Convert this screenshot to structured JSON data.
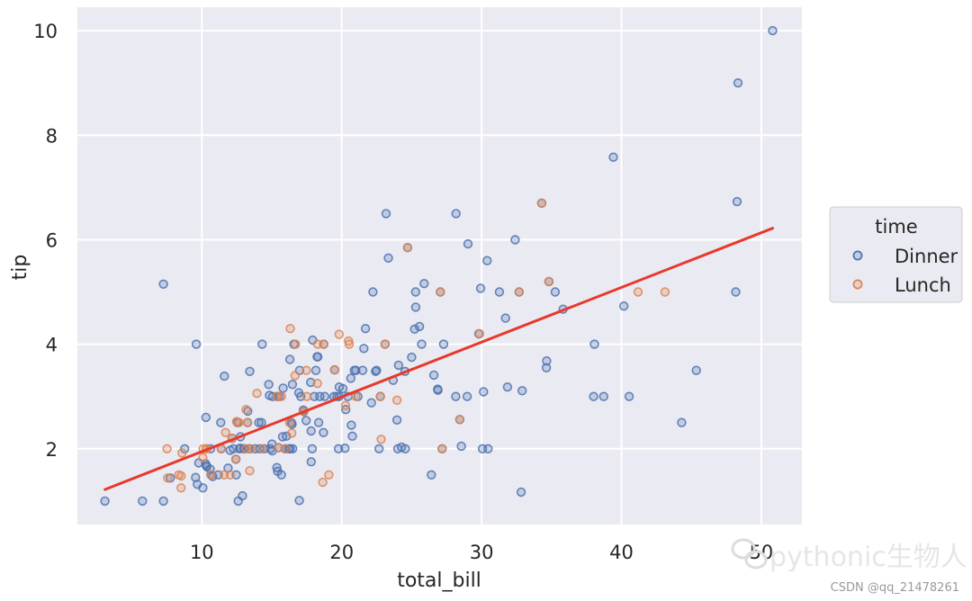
{
  "chart_data": {
    "type": "scatter",
    "xlabel": "total_bill",
    "ylabel": "tip",
    "xlim": [
      1.1,
      52.9
    ],
    "ylim": [
      0.55,
      10.45
    ],
    "xticks": [
      10,
      20,
      30,
      40,
      50
    ],
    "yticks": [
      2,
      4,
      6,
      8,
      10
    ],
    "grid": true,
    "legend": {
      "title": "time",
      "placement": "right"
    },
    "series": [
      {
        "name": "Dinner",
        "color": "#4c72b0",
        "points": [
          [
            3.07,
            1.0
          ],
          [
            5.75,
            1.0
          ],
          [
            7.25,
            1.0
          ],
          [
            7.25,
            5.15
          ],
          [
            7.74,
            1.44
          ],
          [
            8.77,
            2.0
          ],
          [
            9.55,
            1.45
          ],
          [
            9.6,
            4.0
          ],
          [
            9.68,
            1.32
          ],
          [
            9.78,
            1.73
          ],
          [
            10.07,
            1.25
          ],
          [
            10.27,
            1.71
          ],
          [
            10.29,
            2.6
          ],
          [
            10.33,
            1.67
          ],
          [
            10.34,
            1.66
          ],
          [
            10.59,
            1.61
          ],
          [
            10.63,
            2.0
          ],
          [
            10.65,
            1.5
          ],
          [
            10.77,
            1.47
          ],
          [
            11.17,
            1.5
          ],
          [
            11.35,
            2.5
          ],
          [
            11.38,
            2.0
          ],
          [
            11.61,
            3.39
          ],
          [
            11.87,
            1.63
          ],
          [
            12.02,
            1.97
          ],
          [
            12.16,
            2.2
          ],
          [
            12.26,
            2.0
          ],
          [
            12.43,
            1.8
          ],
          [
            12.46,
            1.5
          ],
          [
            12.54,
            2.5
          ],
          [
            12.6,
            1.0
          ],
          [
            12.69,
            2.0
          ],
          [
            12.74,
            2.01
          ],
          [
            12.76,
            2.23
          ],
          [
            12.9,
            1.1
          ],
          [
            13.0,
            2.0
          ],
          [
            13.03,
            2.0
          ],
          [
            13.27,
            2.5
          ],
          [
            13.28,
            2.72
          ],
          [
            13.37,
            2.0
          ],
          [
            13.42,
            3.48
          ],
          [
            13.81,
            2.0
          ],
          [
            14.07,
            2.5
          ],
          [
            14.15,
            2.0
          ],
          [
            14.26,
            2.5
          ],
          [
            14.31,
            4.0
          ],
          [
            14.48,
            2.0
          ],
          [
            14.78,
            3.23
          ],
          [
            14.83,
            3.02
          ],
          [
            14.9,
            2.0
          ],
          [
            15.01,
            2.09
          ],
          [
            15.04,
            1.96
          ],
          [
            15.06,
            3.0
          ],
          [
            15.36,
            1.64
          ],
          [
            15.38,
            3.0
          ],
          [
            15.42,
            1.57
          ],
          [
            15.48,
            2.02
          ],
          [
            15.53,
            3.0
          ],
          [
            15.69,
            1.5
          ],
          [
            15.77,
            2.23
          ],
          [
            15.81,
            3.16
          ],
          [
            15.95,
            2.0
          ],
          [
            16.0,
            2.0
          ],
          [
            16.04,
            2.24
          ],
          [
            16.21,
            2.0
          ],
          [
            16.29,
            3.71
          ],
          [
            16.31,
            2.0
          ],
          [
            16.4,
            2.5
          ],
          [
            16.45,
            2.47
          ],
          [
            16.47,
            3.23
          ],
          [
            16.49,
            2.0
          ],
          [
            16.58,
            4.0
          ],
          [
            16.93,
            3.07
          ],
          [
            16.97,
            1.01
          ],
          [
            16.99,
            3.5
          ],
          [
            17.07,
            3.0
          ],
          [
            17.26,
            2.74
          ],
          [
            17.29,
            2.71
          ],
          [
            17.46,
            2.54
          ],
          [
            17.78,
            3.27
          ],
          [
            17.81,
            2.34
          ],
          [
            17.82,
            1.75
          ],
          [
            17.89,
            2.0
          ],
          [
            17.92,
            4.08
          ],
          [
            18.04,
            3.0
          ],
          [
            18.15,
            3.5
          ],
          [
            18.24,
            3.76
          ],
          [
            18.29,
            3.76
          ],
          [
            18.35,
            2.5
          ],
          [
            18.43,
            3.0
          ],
          [
            18.69,
            2.31
          ],
          [
            18.71,
            4.0
          ],
          [
            18.78,
            3.0
          ],
          [
            19.44,
            3.0
          ],
          [
            19.49,
            3.51
          ],
          [
            19.65,
            3.0
          ],
          [
            19.77,
            2.0
          ],
          [
            19.81,
            3.0
          ],
          [
            19.82,
            3.18
          ],
          [
            20.08,
            3.15
          ],
          [
            20.23,
            2.01
          ],
          [
            20.29,
            2.75
          ],
          [
            20.45,
            3.0
          ],
          [
            20.65,
            3.35
          ],
          [
            20.69,
            2.45
          ],
          [
            20.76,
            2.24
          ],
          [
            20.9,
            3.5
          ],
          [
            21.01,
            3.5
          ],
          [
            21.16,
            3.0
          ],
          [
            21.5,
            3.5
          ],
          [
            21.58,
            3.92
          ],
          [
            21.7,
            4.3
          ],
          [
            22.12,
            2.88
          ],
          [
            22.23,
            5.0
          ],
          [
            22.42,
            3.48
          ],
          [
            22.49,
            3.5
          ],
          [
            22.67,
            2.0
          ],
          [
            22.76,
            3.0
          ],
          [
            23.1,
            4.0
          ],
          [
            23.17,
            6.5
          ],
          [
            23.33,
            5.65
          ],
          [
            23.68,
            3.31
          ],
          [
            23.95,
            2.55
          ],
          [
            24.01,
            2.0
          ],
          [
            24.06,
            3.6
          ],
          [
            24.27,
            2.03
          ],
          [
            24.52,
            3.48
          ],
          [
            24.55,
            2.0
          ],
          [
            24.71,
            5.85
          ],
          [
            25.0,
            3.75
          ],
          [
            25.21,
            4.29
          ],
          [
            25.28,
            5.0
          ],
          [
            25.29,
            4.71
          ],
          [
            25.56,
            4.34
          ],
          [
            25.71,
            4.0
          ],
          [
            25.89,
            5.16
          ],
          [
            26.41,
            1.5
          ],
          [
            26.59,
            3.41
          ],
          [
            26.86,
            3.14
          ],
          [
            26.88,
            3.12
          ],
          [
            27.05,
            5.0
          ],
          [
            27.18,
            2.0
          ],
          [
            27.28,
            4.0
          ],
          [
            28.15,
            3.0
          ],
          [
            28.17,
            6.5
          ],
          [
            28.44,
            2.56
          ],
          [
            28.55,
            2.05
          ],
          [
            28.97,
            3.0
          ],
          [
            29.03,
            5.92
          ],
          [
            29.8,
            4.2
          ],
          [
            29.93,
            5.07
          ],
          [
            30.06,
            2.0
          ],
          [
            30.14,
            3.09
          ],
          [
            30.4,
            5.6
          ],
          [
            30.46,
            2.0
          ],
          [
            31.27,
            5.0
          ],
          [
            31.71,
            4.5
          ],
          [
            31.85,
            3.18
          ],
          [
            32.4,
            6.0
          ],
          [
            32.68,
            5.0
          ],
          [
            32.83,
            1.17
          ],
          [
            32.9,
            3.11
          ],
          [
            34.3,
            6.7
          ],
          [
            34.63,
            3.55
          ],
          [
            34.65,
            3.68
          ],
          [
            34.81,
            5.2
          ],
          [
            35.26,
            5.0
          ],
          [
            35.83,
            4.67
          ],
          [
            38.01,
            3.0
          ],
          [
            38.07,
            4.0
          ],
          [
            38.73,
            3.0
          ],
          [
            39.42,
            7.58
          ],
          [
            40.17,
            4.73
          ],
          [
            40.55,
            3.0
          ],
          [
            44.3,
            2.5
          ],
          [
            45.35,
            3.5
          ],
          [
            48.17,
            5.0
          ],
          [
            48.27,
            6.73
          ],
          [
            48.33,
            9.0
          ],
          [
            50.81,
            10.0
          ]
        ]
      },
      {
        "name": "Lunch",
        "color": "#dd8452",
        "points": [
          [
            7.51,
            2.0
          ],
          [
            7.56,
            1.44
          ],
          [
            8.35,
            1.5
          ],
          [
            8.51,
            1.25
          ],
          [
            8.52,
            1.48
          ],
          [
            8.58,
            1.92
          ],
          [
            10.07,
            1.83
          ],
          [
            10.09,
            2.0
          ],
          [
            10.33,
            2.0
          ],
          [
            10.34,
            2.0
          ],
          [
            10.65,
            1.5
          ],
          [
            11.38,
            2.0
          ],
          [
            11.59,
            1.5
          ],
          [
            11.69,
            2.31
          ],
          [
            12.03,
            1.5
          ],
          [
            12.16,
            2.2
          ],
          [
            12.43,
            1.8
          ],
          [
            12.48,
            2.52
          ],
          [
            12.66,
            2.5
          ],
          [
            13.13,
            2.0
          ],
          [
            13.16,
            2.75
          ],
          [
            13.27,
            2.5
          ],
          [
            13.42,
            1.58
          ],
          [
            13.51,
            2.0
          ],
          [
            13.94,
            3.06
          ],
          [
            14.31,
            2.0
          ],
          [
            15.38,
            3.0
          ],
          [
            15.48,
            2.02
          ],
          [
            15.69,
            3.0
          ],
          [
            15.98,
            2.0
          ],
          [
            16.27,
            2.5
          ],
          [
            16.32,
            4.3
          ],
          [
            16.43,
            2.3
          ],
          [
            16.66,
            3.4
          ],
          [
            16.69,
            4.0
          ],
          [
            17.29,
            2.71
          ],
          [
            17.47,
            3.5
          ],
          [
            17.51,
            3.0
          ],
          [
            18.26,
            3.25
          ],
          [
            18.28,
            4.0
          ],
          [
            18.64,
            1.36
          ],
          [
            18.71,
            4.0
          ],
          [
            19.08,
            1.5
          ],
          [
            19.49,
            3.51
          ],
          [
            19.81,
            4.19
          ],
          [
            20.27,
            2.83
          ],
          [
            20.49,
            4.06
          ],
          [
            20.53,
            4.0
          ],
          [
            21.01,
            3.0
          ],
          [
            22.76,
            3.0
          ],
          [
            22.82,
            2.18
          ],
          [
            23.1,
            4.0
          ],
          [
            23.95,
            2.93
          ],
          [
            24.71,
            5.85
          ],
          [
            27.05,
            5.0
          ],
          [
            27.18,
            2.0
          ],
          [
            28.44,
            2.56
          ],
          [
            29.85,
            4.2
          ],
          [
            32.68,
            5.0
          ],
          [
            34.3,
            6.7
          ],
          [
            34.81,
            5.2
          ],
          [
            41.19,
            5.0
          ],
          [
            43.11,
            5.0
          ]
        ]
      }
    ],
    "regression": {
      "color": "#e8392b",
      "x": [
        3.07,
        50.81
      ],
      "y": [
        1.22,
        6.22
      ]
    }
  },
  "watermark": {
    "brand": "pythonic生物人",
    "credit": "CSDN @qq_21478261"
  }
}
